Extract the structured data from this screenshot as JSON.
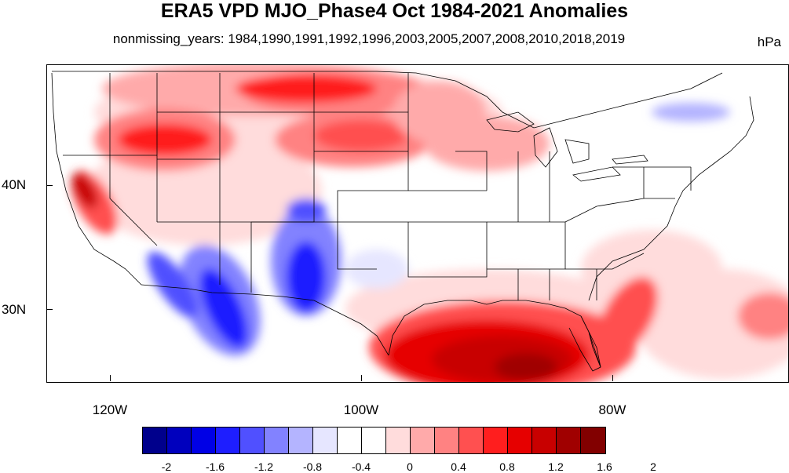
{
  "header": {
    "title": "ERA5 VPD MJO_Phase4 Oct 1984-2021 Anomalies",
    "subtitle": "nonmissing_years: 1984,1990,1991,1992,1996,2003,2005,2007,2008,2010,2018,2019",
    "units": "hPa"
  },
  "axes": {
    "y_labels": [
      "40N",
      "30N"
    ],
    "x_labels": [
      "120W",
      "100W",
      "80W"
    ]
  },
  "colorbar": {
    "labels": [
      "-2",
      "-1.6",
      "-1.2",
      "-0.8",
      "-0.4",
      "0",
      "0.4",
      "0.8",
      "1.2",
      "1.6",
      "2"
    ],
    "colors": [
      "#00008c",
      "#0000be",
      "#0000e6",
      "#1e1eff",
      "#5050ff",
      "#8282ff",
      "#b4b4ff",
      "#e6e6ff",
      "#ffffff",
      "#ffffff",
      "#ffdcdc",
      "#ffaaaa",
      "#ff8282",
      "#ff5050",
      "#ff1e1e",
      "#e60000",
      "#c80000",
      "#a00000",
      "#820000"
    ]
  }
}
